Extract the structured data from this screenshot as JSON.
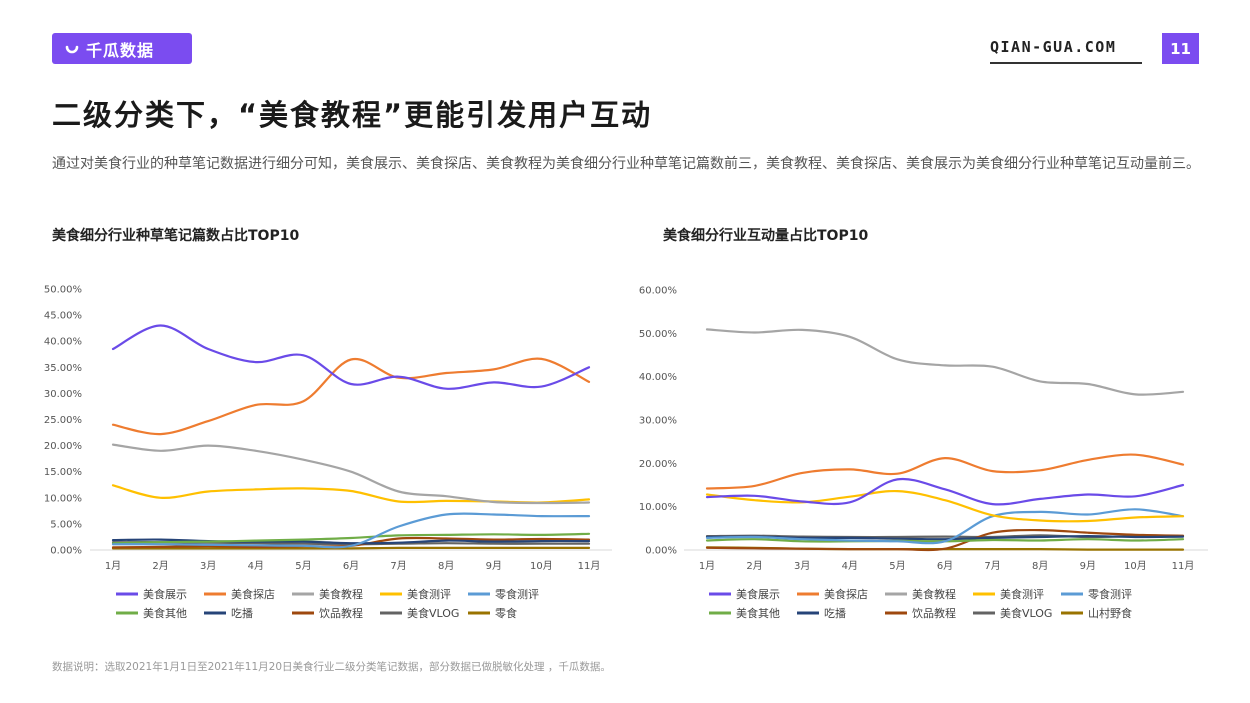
{
  "header": {
    "logo_text": "千瓜数据",
    "site": "QIAN-GUA.COM",
    "page_number": "11",
    "brand_color": "#7b4cf0"
  },
  "title": "二级分类下，“美食教程”更能引发用户互动",
  "description": "通过对美食行业的种草笔记数据进行细分可知，美食展示、美食探店、美食教程为美食细分行业种草笔记篇数前三，美食教程、美食探店、美食展示为美食细分行业种草笔记互动量前三。",
  "footnote": "数据说明：选取2021年1月1日至2021年11月20日美食行业二级分类笔记数据，部分数据已做脱敏化处理 ，千瓜数据。",
  "chart_data": [
    {
      "type": "line",
      "title": "美食细分行业种草笔记篇数占比TOP10",
      "categories": [
        "1月",
        "2月",
        "3月",
        "4月",
        "5月",
        "6月",
        "7月",
        "8月",
        "9月",
        "10月",
        "11月"
      ],
      "ylim": [
        0,
        50
      ],
      "yticks": [
        "0.00%",
        "5.00%",
        "10.00%",
        "15.00%",
        "20.00%",
        "25.00%",
        "30.00%",
        "35.00%",
        "40.00%",
        "45.00%",
        "50.00%"
      ],
      "legend_position": "bottom",
      "series": [
        {
          "name": "美食展示",
          "color": "#6a4be8",
          "values": [
            38.5,
            43.0,
            38.5,
            36.0,
            37.3,
            31.8,
            33.2,
            30.9,
            32.1,
            31.3,
            35.0
          ]
        },
        {
          "name": "美食探店",
          "color": "#ee7c30",
          "values": [
            24.0,
            22.2,
            24.7,
            27.8,
            28.5,
            36.5,
            33.0,
            33.9,
            34.6,
            36.6,
            32.2
          ]
        },
        {
          "name": "美食教程",
          "color": "#a5a5a5",
          "values": [
            20.2,
            19.0,
            20.0,
            19.0,
            17.3,
            15.0,
            11.2,
            10.3,
            9.2,
            9.0,
            9.1
          ]
        },
        {
          "name": "美食测评",
          "color": "#ffc000",
          "values": [
            12.4,
            10.0,
            11.2,
            11.6,
            11.8,
            11.3,
            9.3,
            9.4,
            9.3,
            9.1,
            9.7
          ]
        },
        {
          "name": "零食测评",
          "color": "#5b9bd5",
          "values": [
            1.1,
            1.1,
            1.0,
            0.9,
            0.8,
            0.8,
            4.5,
            6.8,
            6.8,
            6.5,
            6.5
          ]
        },
        {
          "name": "美食其他",
          "color": "#70ad47",
          "values": [
            1.3,
            1.5,
            1.6,
            1.8,
            2.0,
            2.3,
            2.8,
            2.9,
            3.0,
            2.9,
            3.1
          ]
        },
        {
          "name": "吃播",
          "color": "#264478",
          "values": [
            1.9,
            2.0,
            1.7,
            1.6,
            1.6,
            1.3,
            1.4,
            1.8,
            1.6,
            1.7,
            1.7
          ]
        },
        {
          "name": "饮品教程",
          "color": "#9e480e",
          "values": [
            0.5,
            0.6,
            0.7,
            0.6,
            0.7,
            0.8,
            2.2,
            2.2,
            2.0,
            2.1,
            2.0
          ]
        },
        {
          "name": "美食VLOG",
          "color": "#636363",
          "values": [
            1.5,
            1.5,
            1.4,
            1.3,
            1.2,
            1.1,
            1.2,
            1.3,
            1.2,
            1.2,
            1.2
          ]
        },
        {
          "name": "零食",
          "color": "#997300",
          "values": [
            0.3,
            0.3,
            0.3,
            0.3,
            0.3,
            0.3,
            0.4,
            0.4,
            0.4,
            0.4,
            0.4
          ]
        }
      ]
    },
    {
      "type": "line",
      "title": "美食细分行业互动量占比TOP10",
      "categories": [
        "1月",
        "2月",
        "3月",
        "4月",
        "5月",
        "6月",
        "7月",
        "8月",
        "9月",
        "10月",
        "11月"
      ],
      "ylim": [
        0,
        60
      ],
      "yticks": [
        "0.00%",
        "10.00%",
        "20.00%",
        "30.00%",
        "40.00%",
        "50.00%",
        "60.00%"
      ],
      "legend_position": "bottom",
      "series": [
        {
          "name": "美食展示",
          "color": "#6a4be8",
          "values": [
            12.2,
            12.5,
            11.2,
            11.0,
            16.3,
            14.0,
            10.6,
            11.8,
            12.8,
            12.4,
            15.0
          ]
        },
        {
          "name": "美食探店",
          "color": "#ee7c30",
          "values": [
            14.2,
            14.8,
            17.8,
            18.6,
            17.6,
            21.2,
            18.2,
            18.4,
            20.8,
            22.0,
            19.7
          ]
        },
        {
          "name": "美食教程",
          "color": "#a5a5a5",
          "values": [
            50.9,
            50.2,
            50.8,
            49.2,
            44.0,
            42.6,
            42.3,
            38.9,
            38.3,
            35.9,
            36.5
          ]
        },
        {
          "name": "美食测评",
          "color": "#ffc000",
          "values": [
            12.8,
            11.5,
            11.0,
            12.3,
            13.6,
            11.5,
            8.0,
            6.8,
            6.7,
            7.5,
            7.8
          ]
        },
        {
          "name": "零食测评",
          "color": "#5b9bd5",
          "values": [
            2.8,
            3.0,
            2.5,
            2.2,
            2.0,
            2.0,
            7.8,
            8.8,
            8.2,
            9.4,
            7.8
          ]
        },
        {
          "name": "美食其他",
          "color": "#70ad47",
          "values": [
            2.2,
            2.5,
            2.0,
            2.0,
            2.1,
            2.0,
            2.3,
            2.2,
            2.5,
            2.2,
            2.5
          ]
        },
        {
          "name": "吃播",
          "color": "#264478",
          "values": [
            3.0,
            3.1,
            2.8,
            2.8,
            2.6,
            2.5,
            2.8,
            3.0,
            3.2,
            3.0,
            3.1
          ]
        },
        {
          "name": "饮品教程",
          "color": "#9e480e",
          "values": [
            0.5,
            0.4,
            0.3,
            0.2,
            0.2,
            0.3,
            4.0,
            4.6,
            4.0,
            3.5,
            3.3
          ]
        },
        {
          "name": "美食VLOG",
          "color": "#636363",
          "values": [
            3.2,
            3.3,
            3.1,
            3.0,
            3.0,
            3.1,
            3.0,
            3.4,
            3.0,
            3.2,
            3.2
          ]
        },
        {
          "name": "山村野食",
          "color": "#997300",
          "values": [
            0.6,
            0.5,
            0.3,
            0.2,
            0.2,
            0.2,
            0.2,
            0.2,
            0.1,
            0.1,
            0.1
          ]
        }
      ]
    }
  ]
}
